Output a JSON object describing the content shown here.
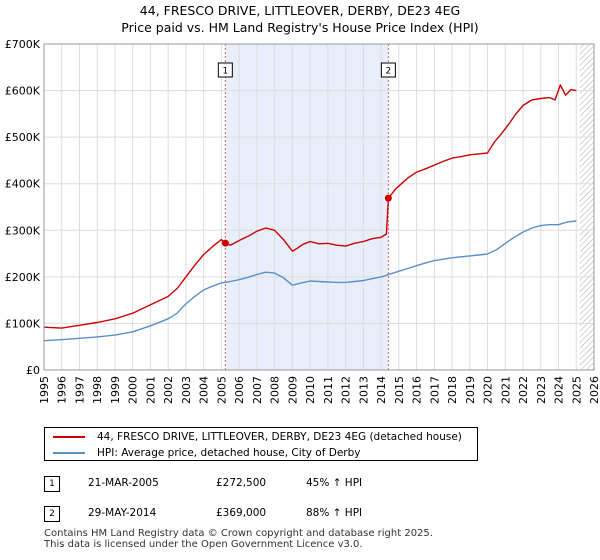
{
  "title": {
    "line1": "44, FRESCO DRIVE, LITTLEOVER, DERBY, DE23 4EG",
    "line2": "Price paid vs. HM Land Registry's House Price Index (HPI)"
  },
  "chart_data": {
    "type": "line",
    "title": "44, FRESCO DRIVE, LITTLEOVER, DERBY, DE23 4EG — Price paid vs. HM Land Registry's House Price Index (HPI)",
    "xlabel": "",
    "ylabel": "",
    "xlim": [
      1995,
      2026
    ],
    "ylim": [
      0,
      700000
    ],
    "y_ticks": [
      0,
      100000,
      200000,
      300000,
      400000,
      500000,
      600000,
      700000
    ],
    "y_tick_labels": [
      "£0",
      "£100K",
      "£200K",
      "£300K",
      "£400K",
      "£500K",
      "£600K",
      "£700K"
    ],
    "x_ticks": [
      1995,
      1996,
      1997,
      1998,
      1999,
      2000,
      2001,
      2002,
      2003,
      2004,
      2005,
      2006,
      2007,
      2008,
      2009,
      2010,
      2011,
      2012,
      2013,
      2014,
      2015,
      2016,
      2017,
      2018,
      2019,
      2020,
      2021,
      2022,
      2023,
      2024,
      2025,
      2026
    ],
    "x_tick_labels": [
      "1995",
      "1996",
      "1997",
      "1998",
      "1999",
      "2000",
      "2001",
      "2002",
      "2003",
      "2004",
      "2005",
      "2006",
      "2007",
      "2008",
      "2009",
      "2010",
      "2011",
      "2012",
      "2013",
      "2014",
      "2015",
      "2016",
      "2017",
      "2018",
      "2019",
      "2020",
      "2021",
      "2022",
      "2023",
      "2024",
      "2025",
      "2026"
    ],
    "grid": true,
    "shaded_period": [
      2005.22,
      2014.41
    ],
    "future_hatch_from": 2025.2,
    "series": [
      {
        "name": "44, FRESCO DRIVE, LITTLEOVER, DERBY, DE23 4EG (detached house)",
        "color": "#cc0000",
        "x": [
          1995,
          1996,
          1997,
          1998,
          1999,
          2000,
          2001,
          2002,
          2002.5,
          2003,
          2003.5,
          2004,
          2004.5,
          2005,
          2005.22,
          2005.5,
          2006,
          2006.5,
          2007,
          2007.5,
          2008,
          2008.5,
          2009,
          2009.3,
          2009.6,
          2010,
          2010.5,
          2011,
          2011.5,
          2012,
          2012.5,
          2013,
          2013.5,
          2014,
          2014.3,
          2014.41,
          2014.8,
          2015.2,
          2015.5,
          2016,
          2016.5,
          2017,
          2017.5,
          2018,
          2018.5,
          2019,
          2019.5,
          2020,
          2020.4,
          2020.8,
          2021.2,
          2021.6,
          2022,
          2022.5,
          2023,
          2023.5,
          2023.8,
          2024.1,
          2024.4,
          2024.7,
          2025
        ],
        "y": [
          92000,
          90000,
          96000,
          102000,
          110000,
          122000,
          140000,
          158000,
          175000,
          200000,
          225000,
          248000,
          265000,
          280000,
          272500,
          268000,
          278000,
          287000,
          298000,
          305000,
          300000,
          280000,
          255000,
          262000,
          270000,
          276000,
          271000,
          272000,
          268000,
          266000,
          272000,
          276000,
          282000,
          285000,
          292000,
          369000,
          388000,
          402000,
          412000,
          425000,
          432000,
          440000,
          448000,
          455000,
          458000,
          462000,
          464000,
          466000,
          490000,
          508000,
          528000,
          550000,
          568000,
          580000,
          583000,
          585000,
          580000,
          612000,
          590000,
          602000,
          600000
        ]
      },
      {
        "name": "HPI: Average price, detached house, City of Derby",
        "color": "#5b8fc7",
        "x": [
          1995,
          1996,
          1997,
          1998,
          1999,
          2000,
          2001,
          2002,
          2002.5,
          2003,
          2003.5,
          2004,
          2004.5,
          2005,
          2005.5,
          2006,
          2006.5,
          2007,
          2007.5,
          2008,
          2008.5,
          2009,
          2009.5,
          2010,
          2010.5,
          2011,
          2011.5,
          2012,
          2012.5,
          2013,
          2013.5,
          2014,
          2014.5,
          2015,
          2015.5,
          2016,
          2016.5,
          2017,
          2017.5,
          2018,
          2018.5,
          2019,
          2019.5,
          2020,
          2020.5,
          2021,
          2021.5,
          2022,
          2022.5,
          2023,
          2023.5,
          2024,
          2024.5,
          2025
        ],
        "y": [
          63000,
          65000,
          68000,
          71000,
          75000,
          82000,
          95000,
          110000,
          122000,
          142000,
          158000,
          172000,
          180000,
          187000,
          190000,
          194000,
          199000,
          205000,
          210000,
          208000,
          198000,
          182000,
          187000,
          191000,
          190000,
          189000,
          188000,
          188000,
          190000,
          192000,
          196000,
          200000,
          206000,
          212000,
          218000,
          224000,
          230000,
          235000,
          238000,
          241000,
          243000,
          245000,
          247000,
          249000,
          258000,
          272000,
          285000,
          296000,
          305000,
          310000,
          312000,
          312000,
          318000,
          320000
        ]
      }
    ],
    "markers": [
      {
        "label": "1",
        "x": 2005.22,
        "y": 272500
      },
      {
        "label": "2",
        "x": 2014.41,
        "y": 369000
      }
    ]
  },
  "legend": {
    "items": [
      {
        "label": "44, FRESCO DRIVE, LITTLEOVER, DERBY, DE23 4EG (detached house)",
        "color": "#cc0000"
      },
      {
        "label": "HPI: Average price, detached house, City of Derby",
        "color": "#5b8fc7"
      }
    ]
  },
  "transactions": [
    {
      "num": "1",
      "date": "21-MAR-2005",
      "price": "£272,500",
      "hpi": "45% ↑ HPI"
    },
    {
      "num": "2",
      "date": "29-MAY-2014",
      "price": "£369,000",
      "hpi": "88% ↑ HPI"
    }
  ],
  "footer": {
    "line1": "Contains HM Land Registry data © Crown copyright and database right 2025.",
    "line2": "This data is licensed under the Open Government Licence v3.0."
  }
}
